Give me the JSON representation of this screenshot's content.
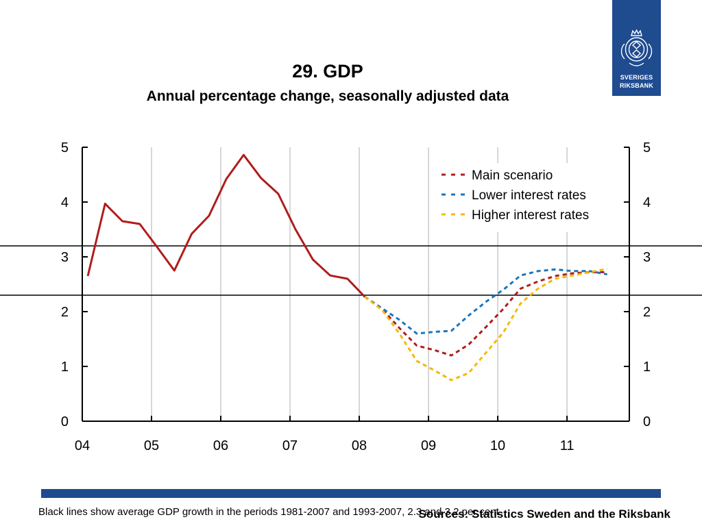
{
  "header": {
    "title": "29. GDP",
    "subtitle": "Annual percentage change, seasonally adjusted data"
  },
  "logo": {
    "line1": "SVERIGES",
    "line2": "RIKSBANK",
    "color": "#1f4b8f"
  },
  "footer": {
    "footnote": "Black lines show average GDP growth in the periods 1981-2007 and 1993-2007, 2.3 and 3.2 per cent",
    "source": "Sources: Statistics Sweden and the Riksbank",
    "bar_color": "#1f4b8f"
  },
  "chart_data": {
    "type": "line",
    "title": "29. GDP",
    "subtitle": "Annual percentage change, seasonally adjusted data",
    "xlim": [
      2004,
      2011.9
    ],
    "ylim": [
      0,
      5
    ],
    "yticks": [
      0,
      1,
      2,
      3,
      4,
      5
    ],
    "xticks": [
      {
        "value": 2004,
        "label": "04"
      },
      {
        "value": 2005,
        "label": "05"
      },
      {
        "value": 2006,
        "label": "06"
      },
      {
        "value": 2007,
        "label": "07"
      },
      {
        "value": 2008,
        "label": "08"
      },
      {
        "value": 2009,
        "label": "09"
      },
      {
        "value": 2010,
        "label": "10"
      },
      {
        "value": 2011,
        "label": "11"
      }
    ],
    "grid": "vertical",
    "legend_position": "top-right",
    "reference_lines": [
      {
        "y": 3.2,
        "color": "#000000"
      },
      {
        "y": 2.3,
        "color": "#000000"
      }
    ],
    "series": [
      {
        "key": "outcome",
        "color": "#b01c1c",
        "style": "solid",
        "x": [
          2004.08,
          2004.33,
          2004.58,
          2004.83,
          2005.08,
          2005.33,
          2005.58,
          2005.83,
          2006.08,
          2006.33,
          2006.58,
          2006.83,
          2007.08,
          2007.33,
          2007.58,
          2007.83,
          2008.08
        ],
        "y": [
          2.65,
          3.97,
          3.65,
          3.6,
          3.18,
          2.75,
          3.42,
          3.75,
          4.42,
          4.86,
          4.44,
          4.15,
          3.5,
          2.95,
          2.66,
          2.6,
          2.27
        ]
      },
      {
        "name": "Main scenario",
        "color": "#b01c1c",
        "style": "dashed",
        "x": [
          2008.08,
          2008.33,
          2008.58,
          2008.83,
          2009.08,
          2009.33,
          2009.58,
          2009.83,
          2010.08,
          2010.33,
          2010.58,
          2010.83,
          2011.08,
          2011.33,
          2011.58
        ],
        "y": [
          2.27,
          2.05,
          1.7,
          1.38,
          1.3,
          1.2,
          1.4,
          1.72,
          2.05,
          2.42,
          2.55,
          2.65,
          2.7,
          2.72,
          2.72
        ]
      },
      {
        "name": "Lower interest rates",
        "color": "#1c75bc",
        "style": "dashed",
        "x": [
          2008.08,
          2008.33,
          2008.58,
          2008.83,
          2009.08,
          2009.33,
          2009.58,
          2009.83,
          2010.08,
          2010.33,
          2010.58,
          2010.83,
          2011.08,
          2011.33,
          2011.58
        ],
        "y": [
          2.27,
          2.06,
          1.85,
          1.6,
          1.63,
          1.65,
          1.93,
          2.18,
          2.4,
          2.66,
          2.74,
          2.77,
          2.74,
          2.74,
          2.68
        ]
      },
      {
        "name": "Higher interest rates",
        "color": "#f5b800",
        "style": "dashed",
        "x": [
          2008.08,
          2008.33,
          2008.58,
          2008.83,
          2009.08,
          2009.33,
          2009.58,
          2009.83,
          2010.08,
          2010.33,
          2010.58,
          2010.83,
          2011.08,
          2011.33,
          2011.58
        ],
        "y": [
          2.27,
          2.03,
          1.6,
          1.1,
          0.93,
          0.75,
          0.88,
          1.25,
          1.62,
          2.15,
          2.42,
          2.6,
          2.66,
          2.72,
          2.78
        ]
      }
    ]
  }
}
